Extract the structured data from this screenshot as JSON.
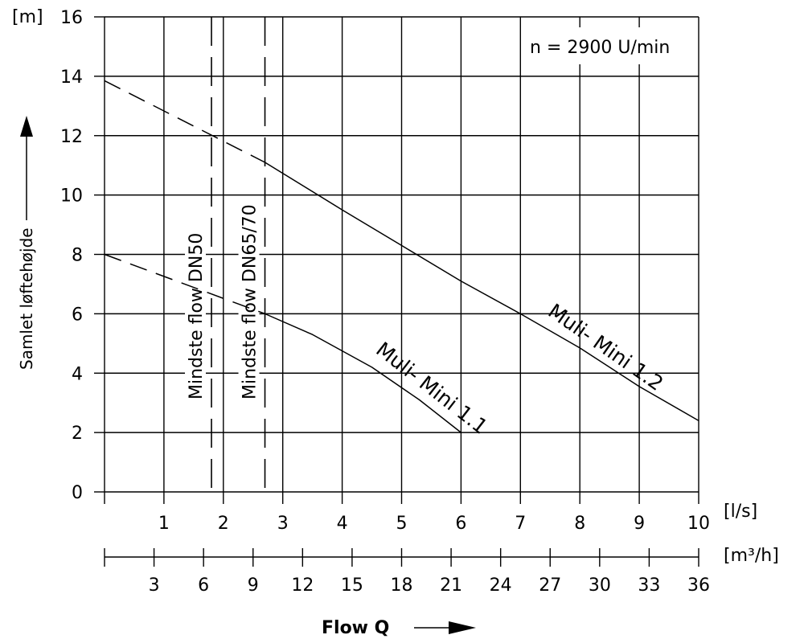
{
  "chart_data": {
    "type": "line",
    "ylabel": "Samlet løftehøjde",
    "y_unit": "[m]",
    "x_unit_primary": "[l/s]",
    "x_unit_secondary": "[m³/h]",
    "xlabel": "Flow Q",
    "annotation": "n = 2900 U/min",
    "xlim": [
      0,
      10
    ],
    "ylim": [
      0,
      16
    ],
    "x_ticks": [
      1,
      2,
      3,
      4,
      5,
      6,
      7,
      8,
      9,
      10
    ],
    "x2_ticks": [
      3,
      6,
      9,
      12,
      15,
      18,
      21,
      24,
      27,
      30,
      33,
      36
    ],
    "y_ticks": [
      0,
      2,
      4,
      6,
      8,
      10,
      12,
      14,
      16
    ],
    "grid": true,
    "series": [
      {
        "name": "Muli- Mini 1.1",
        "dashed_points": [
          [
            0,
            8
          ],
          [
            2.7,
            6
          ]
        ],
        "points": [
          [
            2.7,
            6
          ],
          [
            3.5,
            5.3
          ],
          [
            4.5,
            4.2
          ],
          [
            5.3,
            3.1
          ],
          [
            6,
            2
          ]
        ]
      },
      {
        "name": "Muli- Mini 1.2",
        "dashed_points": [
          [
            0,
            13.85
          ],
          [
            2.7,
            11.1
          ]
        ],
        "points": [
          [
            2.7,
            11.1
          ],
          [
            4,
            9.5
          ],
          [
            5,
            8.3
          ],
          [
            6,
            7.1
          ],
          [
            7,
            6
          ],
          [
            8,
            4.85
          ],
          [
            9,
            3.55
          ],
          [
            10,
            2.4
          ]
        ]
      }
    ],
    "vertical_lines": [
      {
        "label": "Mindste flow DN50",
        "x": 1.8
      },
      {
        "label": "Mindste flow DN65/70",
        "x": 2.7
      }
    ]
  }
}
